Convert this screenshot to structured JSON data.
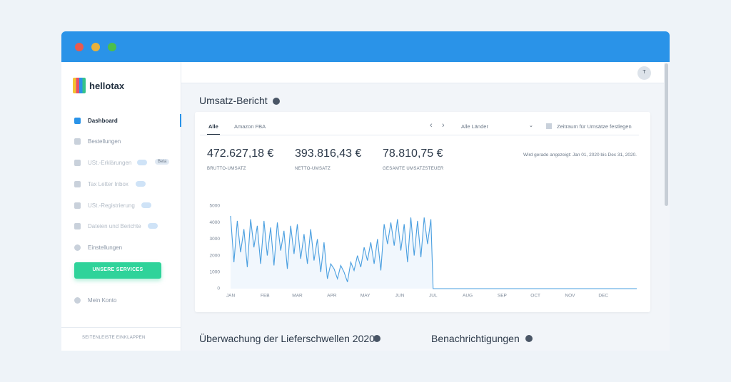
{
  "sidebar": {
    "logo": "hellotax",
    "nav": [
      {
        "label": "Dashboard"
      },
      {
        "label": "Bestellungen"
      },
      {
        "label": "USt.-Erklärungen",
        "badge": "Beta"
      },
      {
        "label": "Tax Letter Inbox"
      },
      {
        "label": "USt.-Registrierung"
      },
      {
        "label": "Dateien und Berichte"
      },
      {
        "label": "Einstellungen"
      }
    ],
    "button": "UNSERE SERVICES",
    "account": "Mein Konto",
    "collapse": "SEITENLEISTE EINKLAPPEN"
  },
  "header": {
    "avatar": "T"
  },
  "report": {
    "title": "Umsatz-Bericht",
    "tabs": [
      "Alle",
      "Amazon FBA"
    ],
    "country": "Alle Länder",
    "period": "Zeitraum für Umsätze festlegen",
    "showing": "Wird gerade angezeigt: Jan 01, 2020 bis Dec 31, 2020.",
    "kpis": [
      {
        "value": "472.627,18 €",
        "label": "BRUTTO-UMSATZ"
      },
      {
        "value": "393.816,43 €",
        "label": "NETTO-UMSATZ"
      },
      {
        "value": "78.810,75 €",
        "label": "GESAMTE UMSATZSTEUER"
      }
    ]
  },
  "chart_data": {
    "type": "line",
    "color": "#4a9fe0",
    "x": [
      0,
      3,
      6,
      9,
      12,
      15,
      18,
      21,
      24,
      27,
      30,
      33,
      36,
      39,
      42,
      45,
      48,
      51,
      54,
      57,
      60,
      63,
      66,
      69,
      72,
      75,
      78,
      81,
      84,
      87,
      90,
      93,
      96,
      99,
      102,
      105,
      108,
      111,
      114,
      117,
      120,
      123,
      126,
      129,
      132,
      135,
      138,
      141,
      144,
      147,
      150,
      153,
      156,
      159,
      162,
      165,
      168,
      171,
      174,
      177,
      180,
      182,
      365
    ],
    "values": [
      4400,
      1600,
      4100,
      2200,
      3600,
      1300,
      4200,
      2500,
      3800,
      1500,
      4100,
      2000,
      3700,
      1400,
      4000,
      2300,
      3500,
      1200,
      3800,
      2100,
      3900,
      1800,
      3300,
      1500,
      3600,
      1700,
      3000,
      1000,
      2800,
      600,
      1500,
      1200,
      600,
      1400,
      1000,
      400,
      1600,
      1100,
      2000,
      1300,
      2500,
      1700,
      2800,
      1500,
      3000,
      1100,
      3900,
      2700,
      4000,
      2600,
      4200,
      2300,
      3900,
      1600,
      4300,
      2000,
      4100,
      1900,
      4300,
      2700,
      4200,
      0,
      0
    ],
    "xlim": [
      0,
      365
    ],
    "ylim": [
      0,
      5000
    ],
    "yticks": [
      0,
      1000,
      2000,
      3000,
      4000,
      5000
    ],
    "xticks": [
      {
        "value": 0,
        "label": "JAN"
      },
      {
        "value": 31,
        "label": "FEB"
      },
      {
        "value": 60,
        "label": "MAR"
      },
      {
        "value": 91,
        "label": "APR"
      },
      {
        "value": 121,
        "label": "MAY"
      },
      {
        "value": 152,
        "label": "JUN"
      },
      {
        "value": 182,
        "label": "JUL"
      },
      {
        "value": 213,
        "label": "AUG"
      },
      {
        "value": 244,
        "label": "SEP"
      },
      {
        "value": 274,
        "label": "OCT"
      },
      {
        "value": 305,
        "label": "NOV"
      },
      {
        "value": 335,
        "label": "DEC"
      }
    ]
  },
  "sections": [
    "Überwachung der Lieferschwellen 2020",
    "Benachrichtigungen"
  ]
}
